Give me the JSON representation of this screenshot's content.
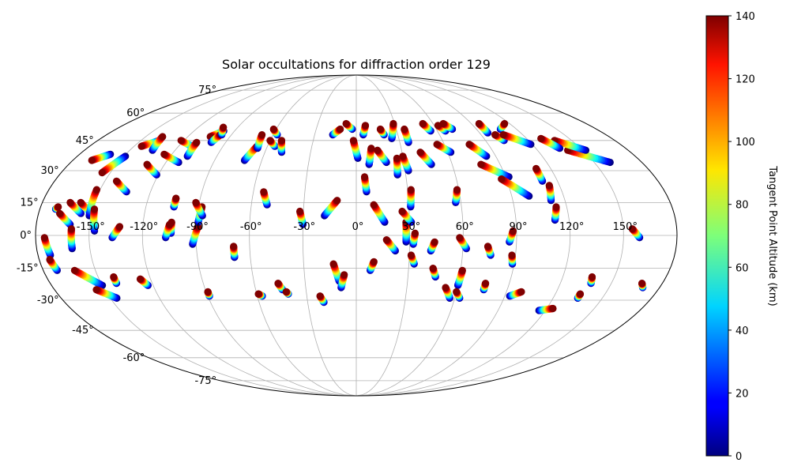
{
  "chart_data": {
    "type": "scatter",
    "projection": "mollweide",
    "title": "Solar occultations for diffraction order 129",
    "colorbar": {
      "label": "Tangent Point Altitude (km)",
      "min": 0,
      "max": 140,
      "ticks": [
        "0",
        "20",
        "40",
        "60",
        "80",
        "100",
        "120",
        "140"
      ],
      "tick_values": [
        0,
        20,
        40,
        60,
        80,
        100,
        120,
        140
      ],
      "colormap": "jet"
    },
    "longitude_ticks": [
      -150,
      -120,
      -90,
      -60,
      -30,
      0,
      30,
      60,
      90,
      120,
      150
    ],
    "longitude_labels": [
      "-150°",
      "-120°",
      "-90°",
      "-60°",
      "-30°",
      "0°",
      "30°",
      "60°",
      "90°",
      "120°",
      "150°"
    ],
    "latitude_ticks": [
      -75,
      -60,
      -45,
      -30,
      -15,
      0,
      15,
      30,
      45,
      60,
      75
    ],
    "latitude_labels": [
      "-75°",
      "-60°",
      "-45°",
      "-30°",
      "-15°",
      "0°",
      "15°",
      "30°",
      "45°",
      "60°",
      "75°"
    ],
    "grid": true,
    "tracks_note": "each track runs from 0 km (blue end) to 140 km (red end); lon/lat in degrees",
    "tracks": [
      {
        "lon": [
          -171,
          -170
        ],
        "lat": [
          12,
          13
        ]
      },
      {
        "lon": [
          -173,
          -175
        ],
        "lat": [
          -9,
          -1
        ]
      },
      {
        "lon": [
          -172,
          -174
        ],
        "lat": [
          -16,
          -11
        ]
      },
      {
        "lon": [
          -161,
          -168
        ],
        "lat": [
          5,
          10
        ]
      },
      {
        "lon": [
          -156,
          -164
        ],
        "lat": [
          10,
          15
        ]
      },
      {
        "lon": [
          -150,
          -158
        ],
        "lat": [
          10,
          15
        ]
      },
      {
        "lon": [
          -151,
          -152
        ],
        "lat": [
          9,
          21
        ]
      },
      {
        "lon": [
          -147,
          -149
        ],
        "lat": [
          2,
          12
        ]
      },
      {
        "lon": [
          -160,
          -168
        ],
        "lat": [
          38,
          35
        ]
      },
      {
        "lon": [
          -149,
          -155
        ],
        "lat": [
          37,
          29
        ]
      },
      {
        "lon": [
          -160,
          -160
        ],
        "lat": [
          -6,
          3
        ]
      },
      {
        "lon": [
          -150,
          -162
        ],
        "lat": [
          -23,
          -16
        ]
      },
      {
        "lon": [
          -146,
          -155
        ],
        "lat": [
          -29,
          -25
        ]
      },
      {
        "lon": [
          -141,
          -141
        ],
        "lat": [
          -22,
          -19
        ]
      },
      {
        "lon": [
          -134,
          -143
        ],
        "lat": [
          20,
          25
        ]
      },
      {
        "lon": [
          -137,
          -133
        ],
        "lat": [
          -1,
          4
        ]
      },
      {
        "lon": [
          -137,
          -145
        ],
        "lat": [
          45,
          42
        ]
      },
      {
        "lon": [
          -121,
          -131
        ],
        "lat": [
          28,
          33
        ]
      },
      {
        "lon": [
          -135,
          -138
        ],
        "lat": [
          40,
          47
        ]
      },
      {
        "lon": [
          -123,
          -126
        ],
        "lat": [
          -23,
          -20
        ]
      },
      {
        "lon": [
          -111,
          -122
        ],
        "lat": [
          42,
          45
        ]
      },
      {
        "lon": [
          -109,
          -110
        ],
        "lat": [
          37,
          44
        ]
      },
      {
        "lon": [
          -104,
          -104
        ],
        "lat": [
          13,
          17
        ]
      },
      {
        "lon": [
          -104,
          -104
        ],
        "lat": [
          1,
          6
        ]
      },
      {
        "lon": [
          -107,
          -105
        ],
        "lat": [
          -1,
          5
        ]
      },
      {
        "lon": [
          -112,
          -125
        ],
        "lat": [
          34,
          38
        ]
      },
      {
        "lon": [
          -98,
          -104
        ],
        "lat": [
          50,
          47
        ]
      },
      {
        "lon": [
          -100,
          -98
        ],
        "lat": [
          44,
          48
        ]
      },
      {
        "lon": [
          -97,
          -101
        ],
        "lat": [
          48,
          52
        ]
      },
      {
        "lon": [
          -92,
          -89
        ],
        "lat": [
          -4,
          4
        ]
      },
      {
        "lon": [
          -89,
          -88
        ],
        "lat": [
          6,
          13
        ]
      },
      {
        "lon": [
          -89,
          -89
        ],
        "lat": [
          -28,
          -26
        ]
      },
      {
        "lon": [
          -87,
          -92
        ],
        "lat": [
          9,
          15
        ]
      },
      {
        "lon": [
          -71,
          -67
        ],
        "lat": [
          35,
          42
        ]
      },
      {
        "lon": [
          -69,
          -69
        ],
        "lat": [
          -10,
          -5
        ]
      },
      {
        "lon": [
          -66,
          -68
        ],
        "lat": [
          41,
          48
        ]
      },
      {
        "lon": [
          -55,
          -60
        ],
        "lat": [
          42,
          45
        ]
      },
      {
        "lon": [
          -57,
          -62
        ],
        "lat": [
          48,
          51
        ]
      },
      {
        "lon": [
          -57,
          -59
        ],
        "lat": [
          -28,
          -27
        ]
      },
      {
        "lon": [
          -51,
          -54
        ],
        "lat": [
          14,
          20
        ]
      },
      {
        "lon": [
          -49,
          -52
        ],
        "lat": [
          39,
          45
        ]
      },
      {
        "lon": [
          -44,
          -46
        ],
        "lat": [
          -25,
          -22
        ]
      },
      {
        "lon": [
          -41,
          -42
        ],
        "lat": [
          -27,
          -26
        ]
      },
      {
        "lon": [
          -30,
          -32
        ],
        "lat": [
          5,
          11
        ]
      },
      {
        "lon": [
          -20,
          -22
        ],
        "lat": [
          -31,
          -28
        ]
      },
      {
        "lon": [
          -18,
          -11
        ],
        "lat": [
          9,
          16
        ]
      },
      {
        "lon": [
          -17,
          -12
        ],
        "lat": [
          48,
          51
        ]
      },
      {
        "lon": [
          -10,
          -13
        ],
        "lat": [
          -21,
          -13
        ]
      },
      {
        "lon": [
          -9,
          -7
        ],
        "lat": [
          -24,
          -18
        ]
      },
      {
        "lon": [
          -3,
          -8
        ],
        "lat": [
          51,
          54
        ]
      },
      {
        "lon": [
          1,
          -2
        ],
        "lat": [
          36,
          45
        ]
      },
      {
        "lon": [
          5,
          7
        ],
        "lat": [
          48,
          53
        ]
      },
      {
        "lon": [
          8,
          10
        ],
        "lat": [
          33,
          41
        ]
      },
      {
        "lon": [
          6,
          5
        ],
        "lat": [
          20,
          27
        ]
      },
      {
        "lon": [
          8,
          10
        ],
        "lat": [
          -16,
          -12
        ]
      },
      {
        "lon": [
          16,
          10
        ],
        "lat": [
          6,
          14
        ]
      },
      {
        "lon": [
          19,
          14
        ],
        "lat": [
          34,
          40
        ]
      },
      {
        "lon": [
          20,
          18
        ],
        "lat": [
          48,
          51
        ]
      },
      {
        "lon": [
          22,
          17
        ],
        "lat": [
          -7,
          -2
        ]
      },
      {
        "lon": [
          25,
          26
        ],
        "lat": [
          28,
          36
        ]
      },
      {
        "lon": [
          25,
          29
        ],
        "lat": [
          46,
          54
        ]
      },
      {
        "lon": [
          28,
          28
        ],
        "lat": [
          -3,
          6
        ]
      },
      {
        "lon": [
          31,
          26
        ],
        "lat": [
          6,
          11
        ]
      },
      {
        "lon": [
          31,
          32
        ],
        "lat": [
          13,
          21
        ]
      },
      {
        "lon": [
          32,
          30
        ],
        "lat": [
          30,
          37
        ]
      },
      {
        "lon": [
          32,
          33
        ],
        "lat": [
          -4,
          1
        ]
      },
      {
        "lon": [
          33,
          31
        ],
        "lat": [
          -13,
          -9
        ]
      },
      {
        "lon": [
          36,
          36
        ],
        "lat": [
          44,
          51
        ]
      },
      {
        "lon": [
          42,
          44
        ],
        "lat": [
          -7,
          -3
        ]
      },
      {
        "lon": [
          46,
          44
        ],
        "lat": [
          -19,
          -15
        ]
      },
      {
        "lon": [
          47,
          42
        ],
        "lat": [
          33,
          39
        ]
      },
      {
        "lon": [
          55,
          52
        ],
        "lat": [
          50,
          54
        ]
      },
      {
        "lon": [
          57,
          59
        ],
        "lat": [
          15,
          21
        ]
      },
      {
        "lon": [
          62,
          55
        ],
        "lat": [
          39,
          43
        ]
      },
      {
        "lon": [
          57,
          53
        ],
        "lat": [
          -29,
          -24
        ]
      },
      {
        "lon": [
          60,
          61
        ],
        "lat": [
          -23,
          -16
        ]
      },
      {
        "lon": [
          62,
          58
        ],
        "lat": [
          -6,
          -1
        ]
      },
      {
        "lon": [
          63,
          60
        ],
        "lat": [
          -29,
          -26
        ]
      },
      {
        "lon": [
          66,
          63
        ],
        "lat": [
          50,
          53
        ]
      },
      {
        "lon": [
          72,
          68
        ],
        "lat": [
          51,
          54
        ]
      },
      {
        "lon": [
          76,
          74
        ],
        "lat": [
          -9,
          -5
        ]
      },
      {
        "lon": [
          76,
          76
        ],
        "lat": [
          -25,
          -22
        ]
      },
      {
        "lon": [
          84,
          77
        ],
        "lat": [
          37,
          43
        ]
      },
      {
        "lon": [
          92,
          78
        ],
        "lat": [
          27,
          33
        ]
      },
      {
        "lon": [
          86,
          88
        ],
        "lat": [
          -3,
          2
        ]
      },
      {
        "lon": [
          89,
          88
        ],
        "lat": [
          -13,
          -9
        ]
      },
      {
        "lon": [
          100,
          87
        ],
        "lat": [
          18,
          26
        ]
      },
      {
        "lon": [
          93,
          99
        ],
        "lat": [
          -28,
          -26
        ]
      },
      {
        "lon": [
          96,
          96
        ],
        "lat": [
          49,
          54
        ]
      },
      {
        "lon": [
          103,
          100
        ],
        "lat": [
          45,
          48
        ]
      },
      {
        "lon": [
          111,
          111
        ],
        "lat": [
          25,
          31
        ]
      },
      {
        "lon": [
          112,
          114
        ],
        "lat": [
          16,
          23
        ]
      },
      {
        "lon": [
          112,
          114
        ],
        "lat": [
          7,
          13
        ]
      },
      {
        "lon": [
          108,
          116
        ],
        "lat": [
          51,
          54
        ]
      },
      {
        "lon": [
          119,
          106
        ],
        "lat": [
          43,
          48
        ]
      },
      {
        "lon": [
          116,
          124
        ],
        "lat": [
          -35,
          -34
        ]
      },
      {
        "lon": [
          135,
          135
        ],
        "lat": [
          -29,
          -27
        ]
      },
      {
        "lon": [
          138,
          137
        ],
        "lat": [
          -22,
          -19
        ]
      },
      {
        "lon": [
          159,
          155
        ],
        "lat": [
          -1,
          3
        ]
      },
      {
        "lon": [
          170,
          168
        ],
        "lat": [
          -24,
          -22
        ]
      },
      {
        "lon": [
          160,
          140
        ],
        "lat": [
          34,
          40
        ]
      },
      {
        "lon": [
          152,
          138
        ],
        "lat": [
          40,
          45
        ]
      },
      {
        "lon": [
          136,
          130
        ],
        "lat": [
          41,
          46
        ]
      }
    ]
  }
}
